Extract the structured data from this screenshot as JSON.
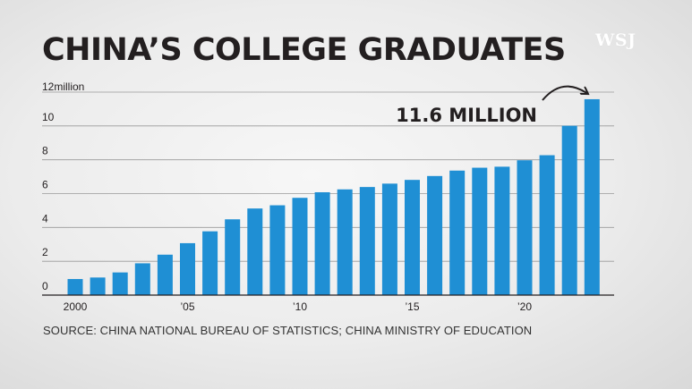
{
  "title": "CHINA’S COLLEGE GRADUATES",
  "logo": "WSJ",
  "source": "SOURCE: CHINA NATIONAL BUREAU OF STATISTICS; CHINA MINISTRY OF EDUCATION",
  "colors": {
    "bar": "#1f8fd4",
    "text": "#231f20",
    "grid": "#9a9a9a"
  },
  "chart_data": {
    "type": "bar",
    "title": "CHINA’S COLLEGE GRADUATES",
    "ylabel": "",
    "ylim": [
      0,
      12
    ],
    "y_unit_label": "12million",
    "yticks": [
      0,
      2,
      4,
      6,
      8,
      10
    ],
    "x": [
      2000,
      2001,
      2002,
      2003,
      2004,
      2005,
      2006,
      2007,
      2008,
      2009,
      2010,
      2011,
      2012,
      2013,
      2014,
      2015,
      2016,
      2017,
      2018,
      2019,
      2020,
      2021,
      2022,
      2023
    ],
    "values": [
      0.95,
      1.04,
      1.34,
      1.88,
      2.39,
      3.07,
      3.77,
      4.48,
      5.12,
      5.31,
      5.75,
      6.08,
      6.25,
      6.39,
      6.59,
      6.81,
      7.04,
      7.36,
      7.53,
      7.59,
      7.97,
      8.27,
      10.01,
      11.58
    ],
    "xtick_labels": [
      {
        "year": 2000,
        "label": "2000"
      },
      {
        "year": 2005,
        "label": "’05"
      },
      {
        "year": 2010,
        "label": "’10"
      },
      {
        "year": 2015,
        "label": "’15"
      },
      {
        "year": 2020,
        "label": "’20"
      }
    ],
    "annotation": {
      "text": "11.6 MILLION",
      "year": 2023
    },
    "grid": true
  }
}
